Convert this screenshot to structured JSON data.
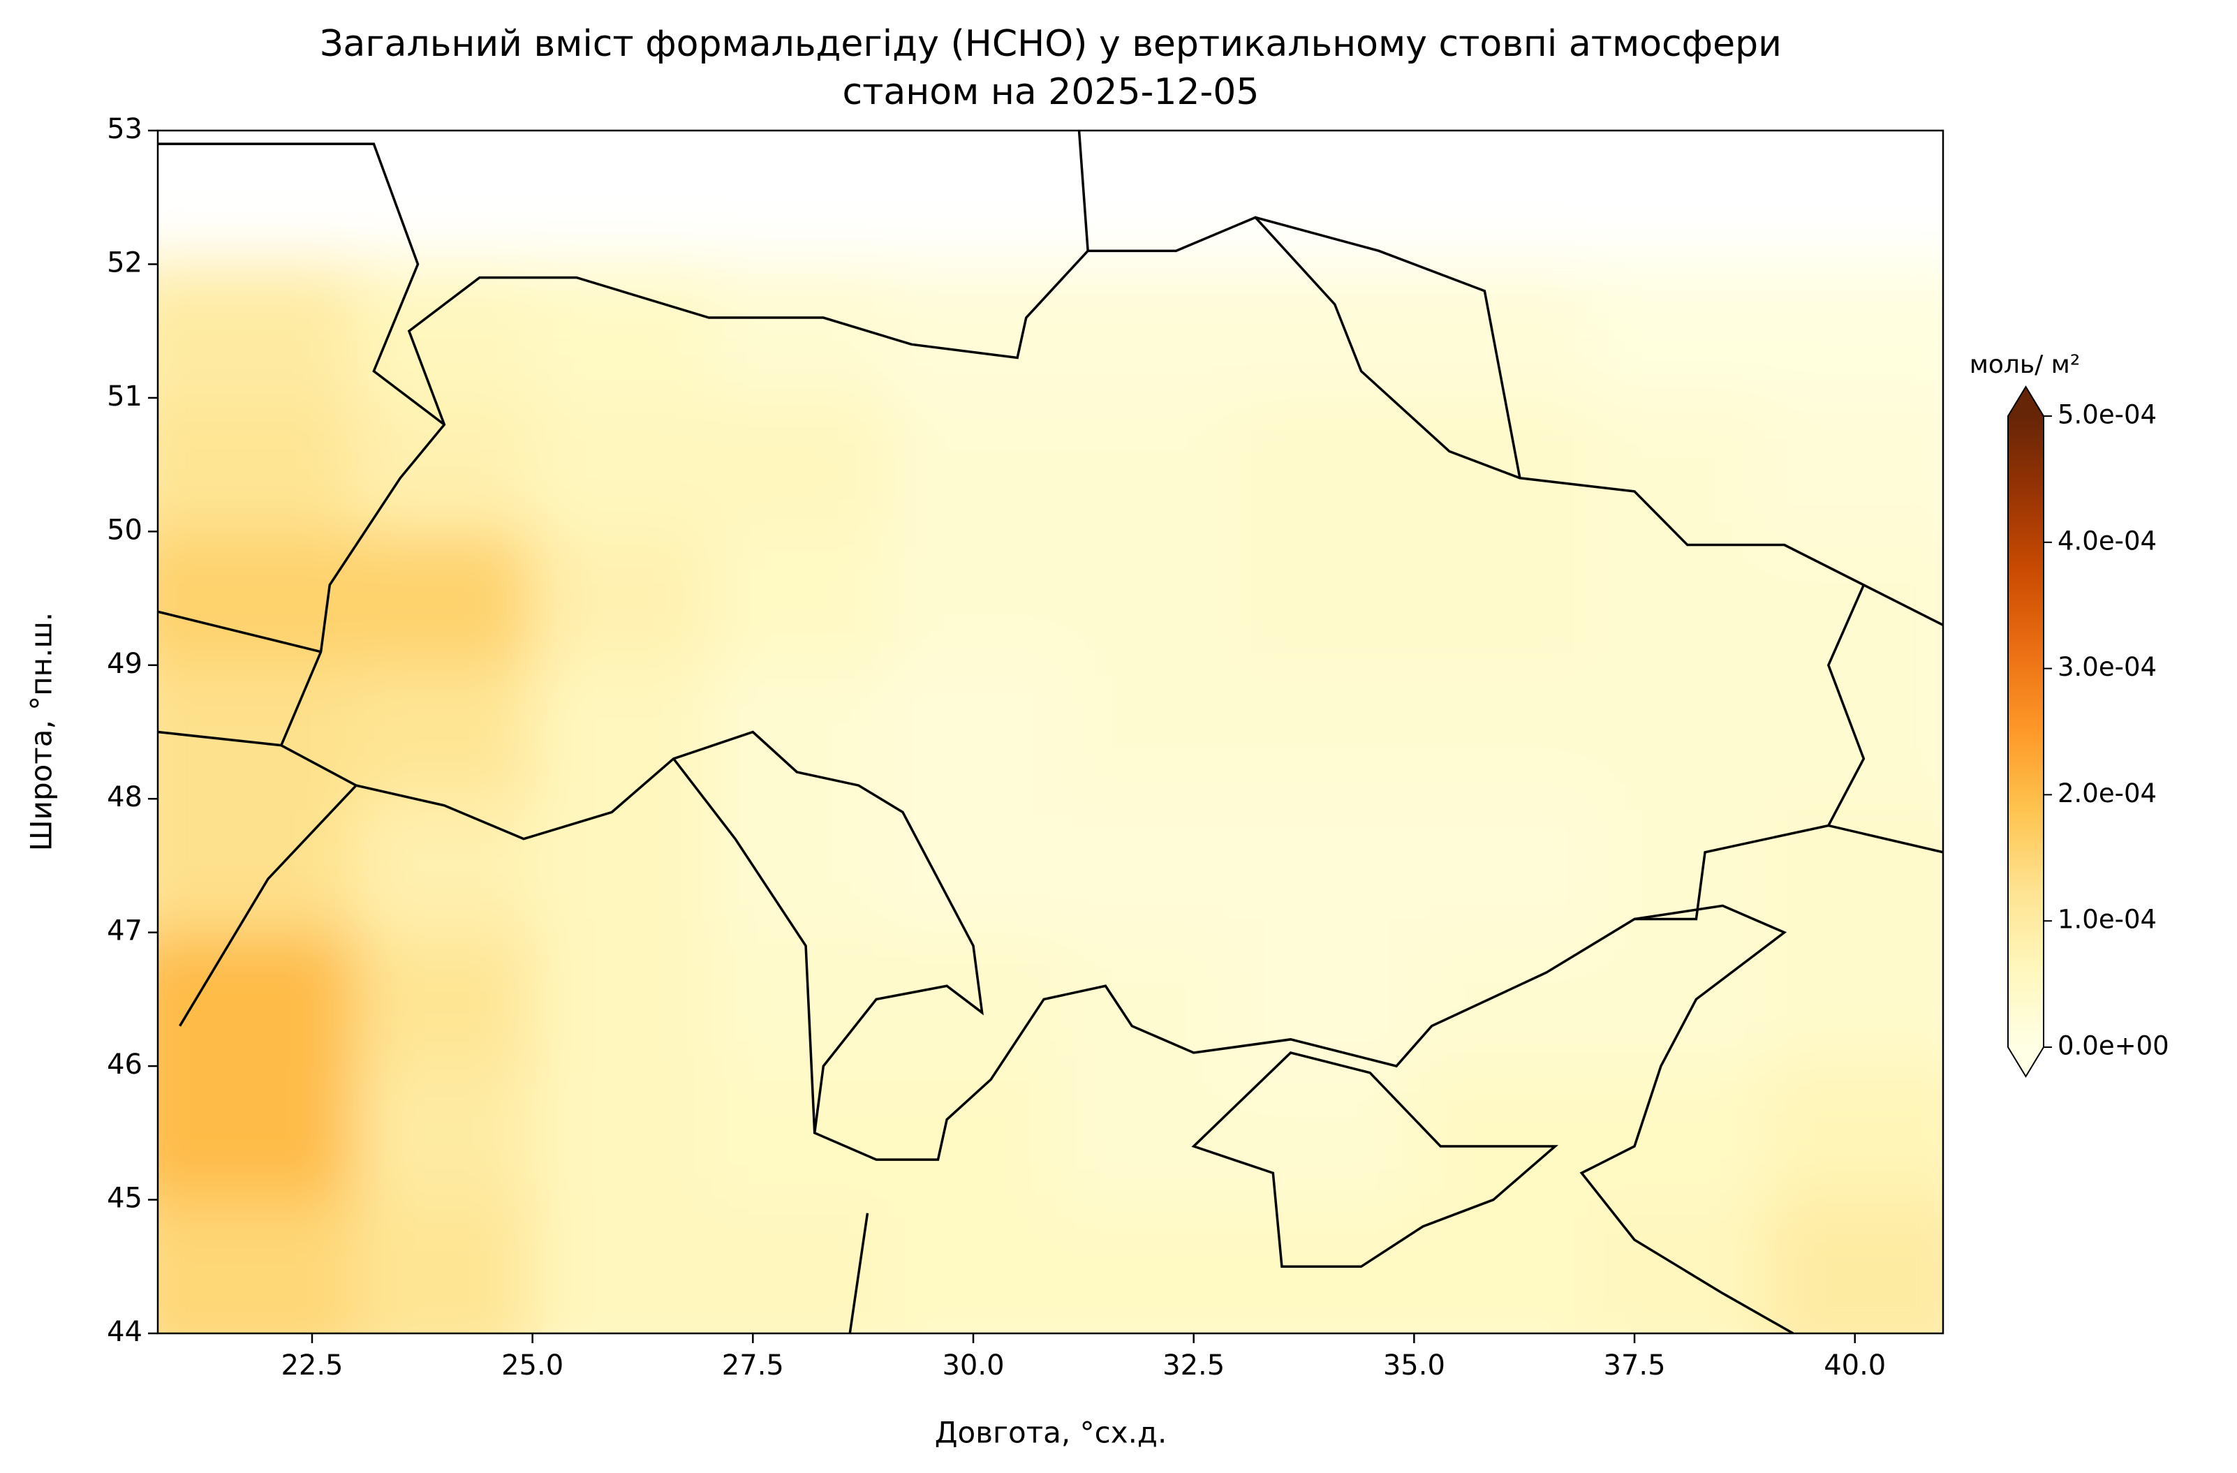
{
  "chart_data": {
    "type": "heatmap",
    "title": "Загальний вміст формальдегіду (HCHO) у вертикальному стовпі атмосфери",
    "subtitle": "станом на 2025-12-05",
    "x_label": "Довгота, °сх.д.",
    "y_label": "Широта, °пн.ш.",
    "xlim": [
      20.75,
      41
    ],
    "ylim": [
      44,
      53
    ],
    "xticks": [
      22.5,
      {
        "value": 25,
        "label": "25.0"
      },
      27.5,
      {
        "value": 30,
        "label": "30.0"
      },
      32.5,
      {
        "value": 35,
        "label": "35.0"
      },
      37.5,
      {
        "value": 40,
        "label": "40.0"
      }
    ],
    "yticks": [
      44,
      45,
      46,
      47,
      48,
      49,
      50,
      51,
      52,
      53
    ],
    "x_edges": [
      20.75,
      23,
      25,
      27,
      29,
      31,
      33,
      35,
      37,
      39,
      41
    ],
    "y_edges": [
      44,
      45,
      46,
      47,
      48,
      49,
      50,
      51,
      52
    ],
    "values": [
      [
        0.00015,
        0.00012,
        6e-05,
        6e-05,
        5e-05,
        5e-05,
        5e-05,
        5e-05,
        6e-05,
        0.0001
      ],
      [
        0.0002,
        0.0001,
        6e-05,
        5e-05,
        5e-05,
        3e-05,
        3e-05,
        5e-05,
        5e-05,
        7e-05
      ],
      [
        0.0002,
        0.00012,
        6e-05,
        4e-05,
        4e-05,
        3e-05,
        2e-05,
        3e-05,
        3e-05,
        4e-05
      ],
      [
        0.00013,
        8e-05,
        6e-05,
        3e-05,
        2e-05,
        2e-05,
        2e-05,
        2e-05,
        3e-05,
        4e-05
      ],
      [
        0.00013,
        0.00012,
        6e-05,
        3e-05,
        2e-05,
        3e-05,
        3e-05,
        3e-05,
        3e-05,
        3e-05
      ],
      [
        0.00016,
        0.00016,
        8e-05,
        5e-05,
        3e-05,
        3e-05,
        4e-05,
        4e-05,
        3e-05,
        3e-05
      ],
      [
        0.00012,
        8e-05,
        6e-05,
        6e-05,
        3e-05,
        3e-05,
        4e-05,
        4e-05,
        3e-05,
        2e-05
      ],
      [
        0.0001,
        6e-05,
        5e-05,
        3e-05,
        2e-05,
        2e-05,
        2e-05,
        2e-05,
        1e-05,
        1e-05
      ]
    ],
    "colormap": [
      "#ffffe5",
      "#fff7bc",
      "#fee391",
      "#fec44f",
      "#fe9929",
      "#ec7014",
      "#cc4c02",
      "#993404",
      "#662506"
    ],
    "colorbar_label": "моль/ м²",
    "clim": [
      0,
      0.0005
    ],
    "colorbar_ticks": [
      {
        "value": 0,
        "label": "0.0e+00"
      },
      {
        "value": 0.0001,
        "label": "1.0e-04"
      },
      {
        "value": 0.0002,
        "label": "2.0e-04"
      },
      {
        "value": 0.0003,
        "label": "3.0e-04"
      },
      {
        "value": 0.0004,
        "label": "4.0e-04"
      },
      {
        "value": 0.0005,
        "label": "5.0e-04"
      }
    ]
  }
}
